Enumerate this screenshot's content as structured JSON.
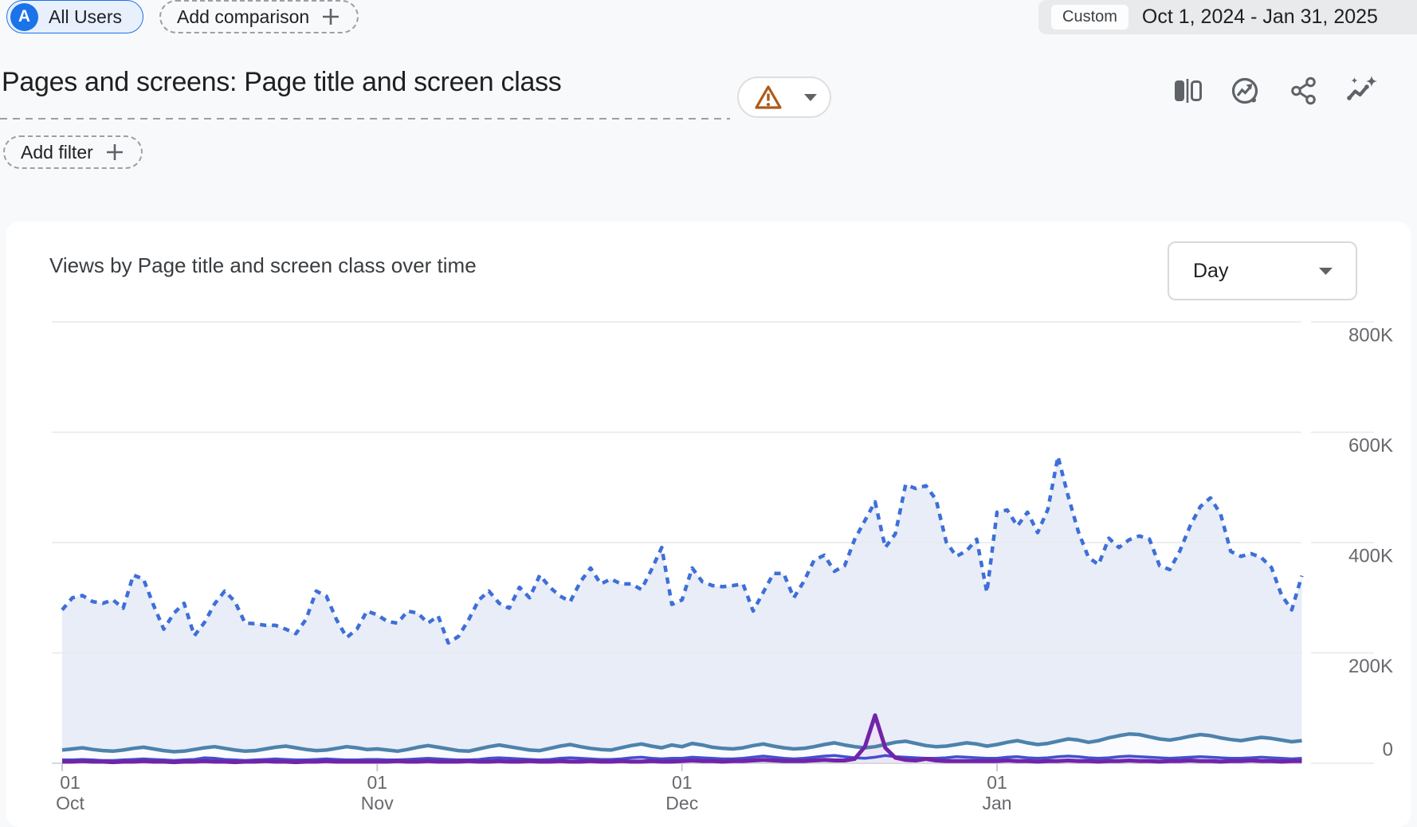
{
  "header": {
    "audience_chip": {
      "avatar_letter": "A",
      "label": "All Users"
    },
    "add_comparison_label": "Add comparison",
    "date_range": {
      "badge": "Custom",
      "range": "Oct 1, 2024 - Jan 31, 2025"
    }
  },
  "report": {
    "title": "Pages and screens: Page title and screen class",
    "add_filter_label": "Add filter",
    "toolbar_icons": [
      "ab-comparison",
      "insights-circle",
      "share",
      "sparkline-insights"
    ],
    "warning_badge": "data-quality-warning"
  },
  "card": {
    "title": "Views by Page title and screen class over time",
    "granularity": {
      "value": "Day"
    }
  },
  "chart_data": {
    "type": "line",
    "title": "Views by Page title and screen class over time",
    "x_axis": {
      "unit": "day",
      "start": "Oct 1, 2024",
      "end": "Jan 31, 2025",
      "num_points": 123,
      "ticks": [
        {
          "index": 0,
          "day": "01",
          "month": "Oct"
        },
        {
          "index": 31,
          "day": "01",
          "month": "Nov"
        },
        {
          "index": 61,
          "day": "01",
          "month": "Dec"
        },
        {
          "index": 92,
          "day": "01",
          "month": "Jan"
        }
      ]
    },
    "y_axis": {
      "position": "right",
      "min": 0,
      "max": 800000,
      "tick_values_k": [
        0,
        200,
        400,
        600,
        800
      ],
      "tick_labels": [
        "0",
        "200K",
        "400K",
        "600K",
        "800K"
      ]
    },
    "values_unit": "thousands (K) of views",
    "grid": "horizontal",
    "legend": "none visible",
    "series": [
      {
        "name": "line-1",
        "style": "dotted",
        "color": "#3e6fd8",
        "fill": "#e8edf8",
        "values_k": [
          278,
          300,
          304,
          293,
          290,
          296,
          281,
          341,
          334,
          286,
          243,
          272,
          290,
          231,
          255,
          289,
          312,
          293,
          254,
          253,
          250,
          250,
          243,
          235,
          261,
          312,
          303,
          260,
          228,
          243,
          276,
          269,
          257,
          254,
          276,
          272,
          254,
          267,
          218,
          230,
          260,
          296,
          312,
          290,
          281,
          319,
          300,
          341,
          319,
          303,
          293,
          329,
          354,
          325,
          334,
          325,
          325,
          315,
          351,
          391,
          288,
          296,
          354,
          329,
          322,
          320,
          322,
          325,
          276,
          310,
          344,
          344,
          300,
          330,
          368,
          377,
          348,
          358,
          406,
          440,
          474,
          391,
          416,
          505,
          498,
          503,
          478,
          401,
          375,
          385,
          406,
          310,
          455,
          459,
          430,
          455,
          418,
          460,
          556,
          484,
          420,
          373,
          360,
          408,
          391,
          405,
          412,
          406,
          358,
          351,
          385,
          430,
          465,
          481,
          452,
          384,
          375,
          380,
          373,
          355,
          305,
          278,
          340
        ]
      },
      {
        "name": "line-2",
        "style": "solid",
        "color": "#4d82ac",
        "fill": "#f9fbfe",
        "values_k": [
          24,
          26,
          28,
          25,
          23,
          22,
          24,
          27,
          29,
          26,
          23,
          21,
          22,
          25,
          28,
          30,
          27,
          24,
          22,
          23,
          26,
          29,
          31,
          28,
          25,
          23,
          24,
          27,
          30,
          28,
          25,
          26,
          24,
          22,
          25,
          29,
          32,
          29,
          26,
          23,
          22,
          26,
          30,
          33,
          30,
          27,
          24,
          23,
          27,
          31,
          34,
          30,
          27,
          25,
          24,
          28,
          32,
          35,
          31,
          28,
          33,
          30,
          36,
          33,
          29,
          27,
          26,
          28,
          32,
          35,
          31,
          28,
          26,
          27,
          30,
          34,
          37,
          33,
          30,
          28,
          30,
          34,
          38,
          40,
          36,
          32,
          30,
          31,
          34,
          37,
          35,
          31,
          34,
          38,
          41,
          37,
          34,
          36,
          40,
          44,
          42,
          38,
          41,
          46,
          50,
          53,
          52,
          48,
          44,
          42,
          45,
          49,
          52,
          50,
          46,
          43,
          41,
          44,
          47,
          45,
          42,
          39,
          41
        ]
      },
      {
        "name": "line-3",
        "style": "solid",
        "color": "#4150ce",
        "fill": "#eef1fc",
        "values_k": [
          6,
          6,
          7,
          6,
          5,
          5,
          6,
          7,
          8,
          7,
          6,
          5,
          6,
          7,
          10,
          9,
          7,
          6,
          5,
          6,
          7,
          8,
          7,
          6,
          6,
          7,
          8,
          7,
          6,
          6,
          7,
          7,
          6,
          6,
          7,
          8,
          9,
          8,
          7,
          6,
          6,
          7,
          9,
          10,
          9,
          8,
          7,
          6,
          7,
          9,
          10,
          9,
          8,
          7,
          7,
          8,
          10,
          11,
          9,
          8,
          9,
          9,
          11,
          10,
          9,
          8,
          8,
          9,
          11,
          13,
          11,
          9,
          8,
          9,
          11,
          13,
          14,
          12,
          10,
          9,
          11,
          14,
          12,
          11,
          10,
          9,
          9,
          10,
          12,
          11,
          10,
          9,
          9,
          11,
          12,
          10,
          9,
          10,
          12,
          13,
          12,
          10,
          9,
          10,
          12,
          13,
          12,
          11,
          10,
          9,
          10,
          11,
          12,
          11,
          10,
          9,
          9,
          10,
          11,
          10,
          9,
          8,
          9
        ]
      },
      {
        "name": "line-4",
        "style": "solid",
        "color": "#7223aa",
        "fill": "#eee6f6",
        "values_k": [
          3,
          3,
          4,
          3,
          3,
          2,
          3,
          3,
          4,
          3,
          3,
          2,
          3,
          3,
          4,
          3,
          3,
          2,
          3,
          3,
          4,
          3,
          3,
          2,
          3,
          3,
          4,
          3,
          3,
          3,
          3,
          3,
          3,
          4,
          3,
          3,
          4,
          3,
          3,
          3,
          4,
          3,
          3,
          4,
          3,
          3,
          4,
          3,
          3,
          4,
          3,
          3,
          4,
          3,
          3,
          4,
          3,
          3,
          4,
          3,
          3,
          4,
          5,
          4,
          4,
          3,
          4,
          4,
          5,
          6,
          5,
          4,
          4,
          4,
          5,
          6,
          5,
          5,
          8,
          30,
          87,
          28,
          10,
          6,
          5,
          8,
          5,
          4,
          4,
          4,
          4,
          4,
          4,
          5,
          4,
          4,
          3,
          4,
          4,
          5,
          4,
          4,
          3,
          4,
          4,
          5,
          4,
          4,
          3,
          4,
          4,
          5,
          4,
          4,
          3,
          4,
          4,
          5,
          4,
          4,
          3,
          4,
          4
        ]
      }
    ]
  }
}
